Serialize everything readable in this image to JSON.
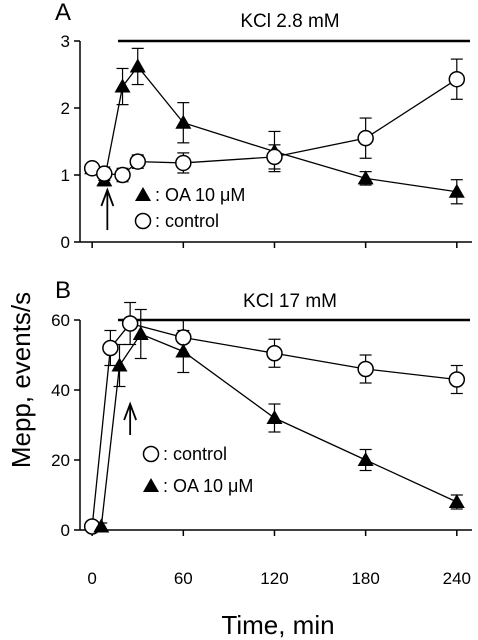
{
  "chart_data": [
    {
      "panel": "A",
      "type": "line",
      "condition_label": "KCl 2.8 mM",
      "ylim": [
        0,
        3
      ],
      "yticks": [
        "0",
        "1",
        "2",
        "3"
      ],
      "xlim": [
        -8,
        250
      ],
      "arrow_at": 10,
      "series": [
        {
          "name": "OA 10 μM",
          "legend_label": ": OA 10 μM",
          "marker": "triangle-filled",
          "x": [
            0,
            8,
            20,
            30,
            60,
            120,
            180,
            240
          ],
          "y": [
            1.1,
            0.92,
            2.32,
            2.62,
            1.78,
            1.35,
            0.95,
            0.75
          ],
          "err": [
            0.07,
            0.08,
            0.27,
            0.27,
            0.3,
            0.3,
            0.1,
            0.18
          ]
        },
        {
          "name": "control",
          "legend_label": ": control",
          "marker": "circle-open",
          "x": [
            0,
            8,
            20,
            30,
            60,
            120,
            180,
            240
          ],
          "y": [
            1.1,
            1.02,
            1.0,
            1.2,
            1.18,
            1.27,
            1.55,
            2.43
          ],
          "err": [
            0.05,
            0.1,
            0.1,
            0.1,
            0.15,
            0.18,
            0.3,
            0.3
          ]
        }
      ]
    },
    {
      "panel": "B",
      "type": "line",
      "condition_label": "KCl 17 mM",
      "ylim": [
        0,
        60
      ],
      "yticks": [
        "0",
        "20",
        "40",
        "60"
      ],
      "xlim": [
        -8,
        250
      ],
      "arrow_at": 25,
      "series": [
        {
          "name": "control",
          "legend_label": ": control",
          "marker": "circle-open",
          "x": [
            0,
            12,
            25,
            60,
            120,
            180,
            240
          ],
          "y": [
            1,
            52,
            59,
            55,
            50.5,
            46,
            43
          ],
          "err": [
            1,
            5,
            6,
            5,
            4,
            4,
            4
          ]
        },
        {
          "name": "OA 10 μM",
          "legend_label": ": OA 10 μM",
          "marker": "triangle-filled",
          "x": [
            6,
            18,
            32,
            60,
            120,
            180,
            240
          ],
          "y": [
            1,
            47,
            56,
            51,
            32,
            20,
            8
          ],
          "err": [
            1,
            6,
            7,
            6,
            4,
            3,
            2
          ]
        }
      ]
    }
  ],
  "shared_xaxis": {
    "ticks": [
      0,
      60,
      120,
      180,
      240
    ],
    "tick_labels": [
      "0",
      "60",
      "120",
      "180",
      "240"
    ],
    "label": "Time, min"
  },
  "shared_yaxis": {
    "label": "Mepp, events/s"
  }
}
